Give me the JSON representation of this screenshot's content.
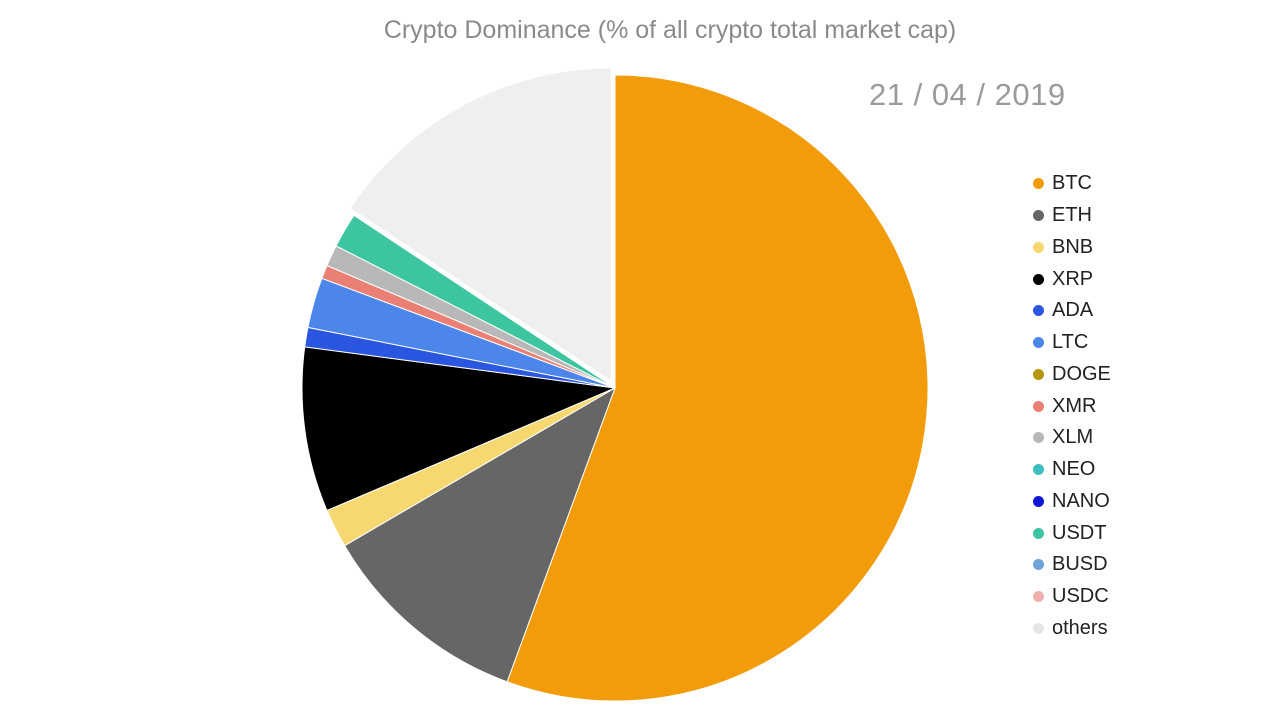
{
  "chart_data": {
    "type": "pie",
    "title": "Crypto Dominance (% of all crypto total market cap)",
    "date": "21 / 04 / 2019",
    "legend_position": "right",
    "exploded_slice": "others",
    "slices": [
      {
        "label": "BTC",
        "value": 55.6,
        "color": "#f39c0b"
      },
      {
        "label": "ETH",
        "value": 11.0,
        "color": "#666666"
      },
      {
        "label": "BNB",
        "value": 2.0,
        "color": "#f7d870"
      },
      {
        "label": "XRP",
        "value": 8.5,
        "color": "#000000"
      },
      {
        "label": "ADA",
        "value": 1.0,
        "color": "#2b56e0"
      },
      {
        "label": "LTC",
        "value": 2.6,
        "color": "#4c86ea"
      },
      {
        "label": "DOGE",
        "value": 0.0,
        "color": "#b8950f"
      },
      {
        "label": "XMR",
        "value": 0.7,
        "color": "#ea7f74"
      },
      {
        "label": "XLM",
        "value": 1.1,
        "color": "#b8b8b8"
      },
      {
        "label": "NEO",
        "value": 0.0,
        "color": "#3dbdbd"
      },
      {
        "label": "NANO",
        "value": 0.0,
        "color": "#0e17d6"
      },
      {
        "label": "USDT",
        "value": 1.8,
        "color": "#3cc5a0"
      },
      {
        "label": "BUSD",
        "value": 0.0,
        "color": "#6fa3d8"
      },
      {
        "label": "USDC",
        "value": 0.0,
        "color": "#f0b0ad"
      },
      {
        "label": "others",
        "value": 15.7,
        "color": "#efefef"
      }
    ]
  }
}
